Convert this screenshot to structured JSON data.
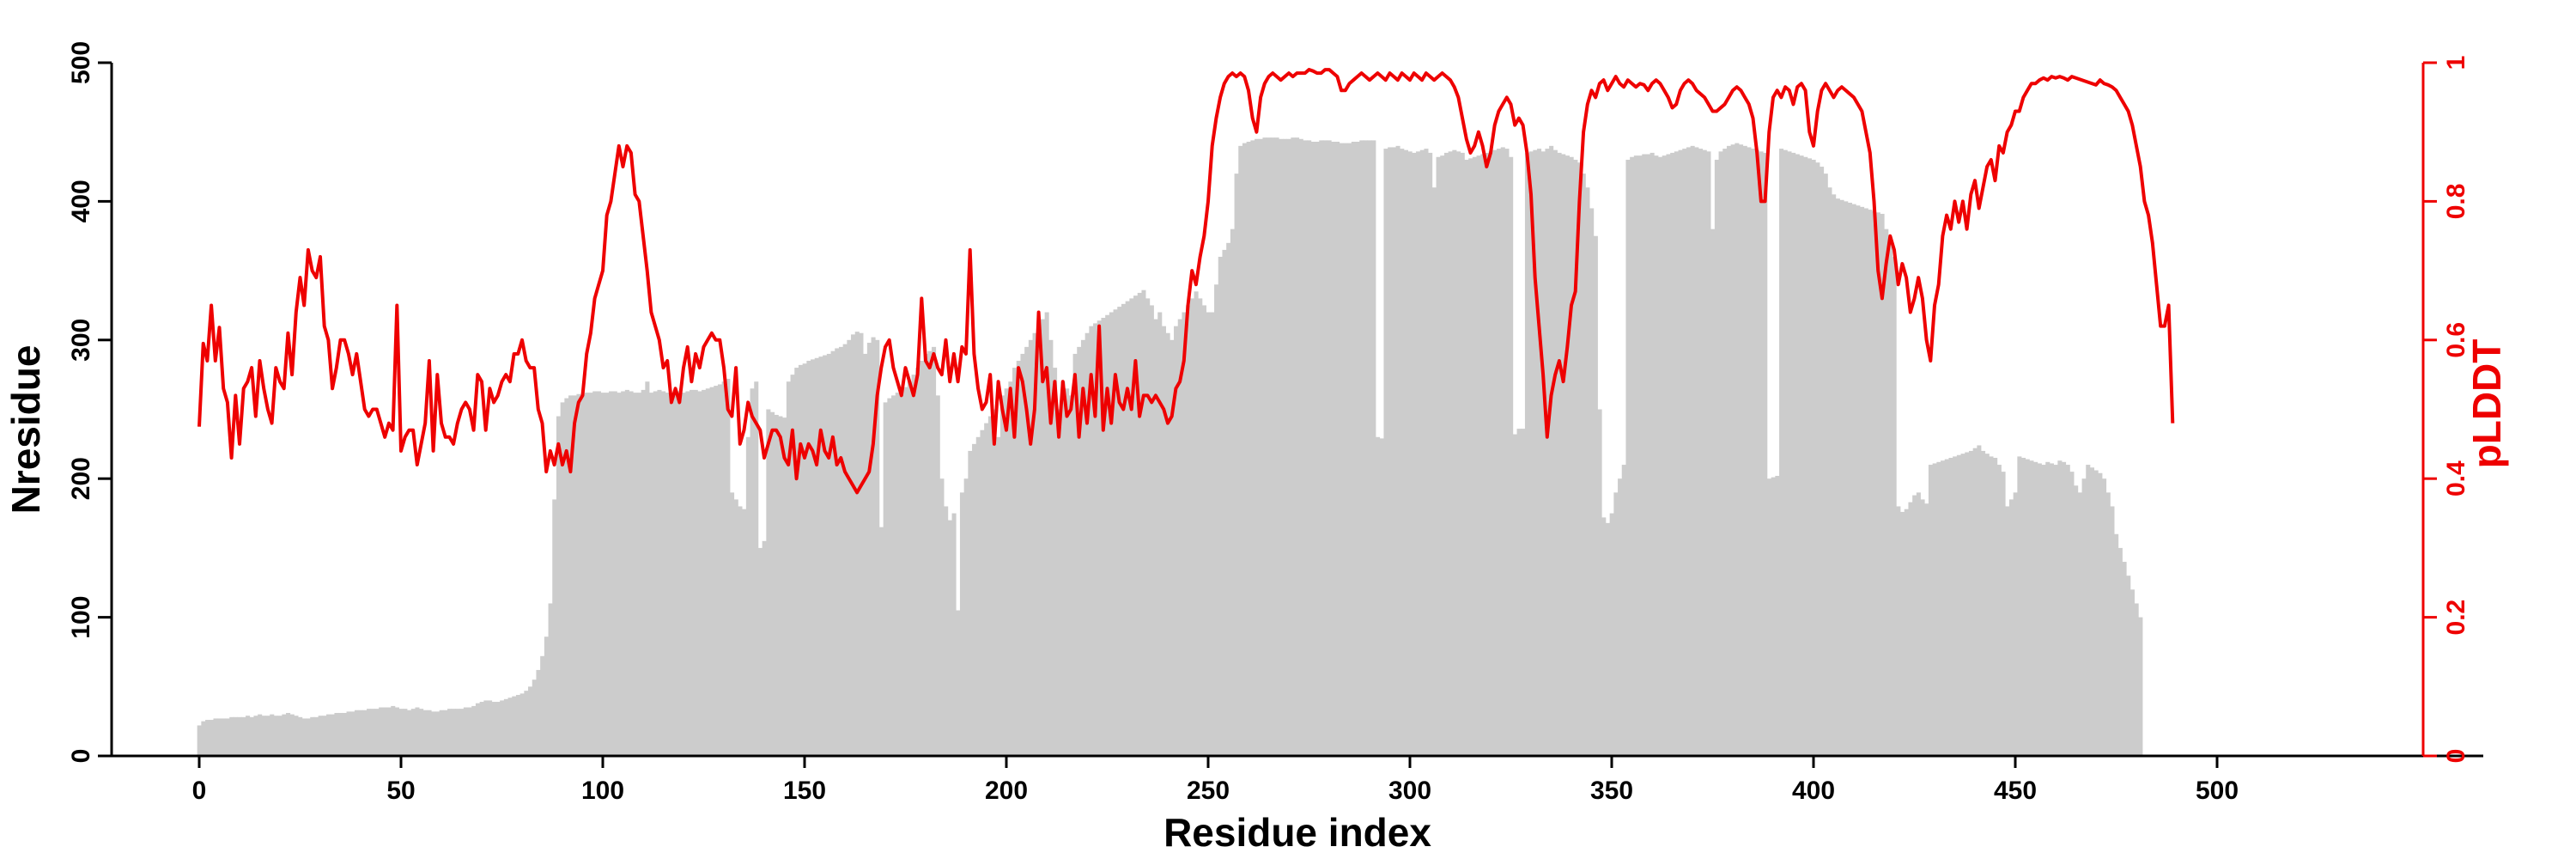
{
  "chart_data": {
    "type": "bar",
    "title": "",
    "xlabel": "Residue index",
    "ylabel": "Nresidue",
    "y2label": "pLDDT",
    "xlim": [
      -20,
      560
    ],
    "ylim": [
      0,
      500
    ],
    "y2lim": [
      0,
      1
    ],
    "x_ticks": [
      0,
      50,
      100,
      150,
      200,
      250,
      300,
      350,
      400,
      450,
      500
    ],
    "y_ticks": [
      0,
      100,
      200,
      300,
      400,
      500
    ],
    "y2_ticks": [
      0,
      0.2,
      0.4,
      0.6,
      0.8,
      1
    ],
    "y2_tick_labels": [
      "0",
      "0.2",
      "0.4",
      "0.6",
      "0.8",
      "1"
    ],
    "grid": false,
    "colors": {
      "bars": "#cccccc",
      "plddt_line": "#ee0000",
      "axes": "#000000",
      "secondary_axis": "#ee0000"
    },
    "series": [
      {
        "kind": "bar",
        "axis": "left",
        "x_start": 0,
        "values": [
          22,
          25,
          26,
          26,
          27,
          27,
          27,
          27,
          28,
          28,
          28,
          28,
          29,
          28,
          29,
          30,
          29,
          29,
          30,
          29,
          29,
          30,
          31,
          30,
          29,
          28,
          27,
          27,
          28,
          28,
          29,
          29,
          30,
          30,
          31,
          31,
          31,
          32,
          32,
          33,
          33,
          33,
          34,
          34,
          34,
          35,
          35,
          35,
          36,
          35,
          34,
          34,
          33,
          34,
          35,
          34,
          33,
          33,
          32,
          32,
          33,
          33,
          34,
          34,
          34,
          34,
          35,
          35,
          36,
          38,
          39,
          40,
          40,
          39,
          39,
          40,
          41,
          42,
          43,
          44,
          45,
          47,
          50,
          55,
          62,
          72,
          86,
          110,
          185,
          245,
          255,
          258,
          260,
          260,
          261,
          261,
          262,
          262,
          263,
          263,
          262,
          262,
          263,
          263,
          262,
          263,
          264,
          263,
          262,
          262,
          264,
          270,
          262,
          263,
          264,
          263,
          262,
          262,
          263,
          263,
          262,
          263,
          264,
          264,
          263,
          264,
          265,
          266,
          267,
          268,
          270,
          272,
          190,
          185,
          180,
          178,
          230,
          265,
          270,
          150,
          155,
          250,
          248,
          246,
          245,
          244,
          270,
          275,
          280,
          282,
          283,
          285,
          286,
          287,
          288,
          289,
          290,
          292,
          294,
          295,
          297,
          300,
          304,
          306,
          305,
          290,
          298,
          302,
          300,
          165,
          255,
          258,
          260,
          262,
          264,
          266,
          270,
          275,
          280,
          285,
          290,
          292,
          295,
          260,
          200,
          180,
          170,
          175,
          105,
          190,
          200,
          220,
          225,
          230,
          235,
          240,
          245,
          250,
          230,
          260,
          265,
          270,
          280,
          285,
          290,
          295,
          300,
          305,
          310,
          315,
          320,
          300,
          280,
          250,
          270,
          265,
          260,
          290,
          295,
          300,
          305,
          310,
          312,
          314,
          316,
          318,
          320,
          322,
          324,
          326,
          328,
          330,
          332,
          334,
          336,
          330,
          325,
          315,
          320,
          310,
          305,
          300,
          310,
          315,
          320,
          325,
          330,
          335,
          330,
          325,
          320,
          320,
          340,
          360,
          365,
          370,
          380,
          420,
          440,
          442,
          443,
          444,
          445,
          445,
          446,
          446,
          446,
          446,
          445,
          445,
          445,
          446,
          446,
          445,
          444,
          444,
          443,
          443,
          444,
          444,
          444,
          443,
          443,
          442,
          442,
          442,
          443,
          443,
          444,
          444,
          444,
          444,
          230,
          229,
          438,
          439,
          439,
          440,
          438,
          437,
          436,
          435,
          436,
          437,
          438,
          435,
          410,
          432,
          433,
          435,
          436,
          437,
          436,
          435,
          430,
          431,
          432,
          433,
          434,
          435,
          436,
          437,
          438,
          439,
          438,
          432,
          232,
          236,
          236,
          435,
          436,
          437,
          438,
          436,
          438,
          440,
          437,
          435,
          434,
          433,
          432,
          430,
          428,
          420,
          410,
          395,
          375,
          250,
          172,
          168,
          175,
          190,
          200,
          210,
          430,
          432,
          433,
          433,
          434,
          434,
          435,
          433,
          432,
          433,
          434,
          435,
          436,
          437,
          438,
          439,
          440,
          439,
          438,
          437,
          436,
          380,
          430,
          436,
          438,
          440,
          441,
          442,
          441,
          440,
          439,
          438,
          437,
          436,
          435,
          200,
          201,
          202,
          438,
          437,
          436,
          435,
          434,
          433,
          432,
          431,
          430,
          428,
          425,
          420,
          410,
          405,
          402,
          401,
          400,
          399,
          398,
          397,
          396,
          395,
          394,
          393,
          392,
          391,
          380,
          370,
          360,
          180,
          176,
          178,
          183,
          188,
          190,
          185,
          182,
          210,
          211,
          212,
          213,
          214,
          215,
          216,
          217,
          218,
          219,
          220,
          222,
          224,
          220,
          218,
          216,
          215,
          210,
          205,
          180,
          185,
          190,
          216,
          215,
          214,
          213,
          212,
          211,
          210,
          212,
          211,
          210,
          213,
          212,
          210,
          205,
          195,
          190,
          200,
          210,
          208,
          206,
          204,
          200,
          190,
          180,
          160,
          150,
          140,
          130,
          120,
          110,
          100
        ]
      },
      {
        "kind": "line",
        "axis": "right",
        "x_start": 0,
        "values": [
          0.475,
          0.595,
          0.57,
          0.65,
          0.57,
          0.618,
          0.53,
          0.51,
          0.43,
          0.52,
          0.45,
          0.53,
          0.54,
          0.56,
          0.49,
          0.57,
          0.53,
          0.5,
          0.48,
          0.56,
          0.54,
          0.53,
          0.61,
          0.55,
          0.64,
          0.69,
          0.65,
          0.73,
          0.7,
          0.69,
          0.72,
          0.62,
          0.6,
          0.53,
          0.56,
          0.6,
          0.6,
          0.58,
          0.55,
          0.58,
          0.54,
          0.5,
          0.49,
          0.5,
          0.5,
          0.48,
          0.46,
          0.48,
          0.47,
          0.65,
          0.44,
          0.46,
          0.47,
          0.47,
          0.42,
          0.45,
          0.48,
          0.57,
          0.44,
          0.55,
          0.48,
          0.46,
          0.46,
          0.45,
          0.48,
          0.5,
          0.51,
          0.5,
          0.47,
          0.55,
          0.54,
          0.47,
          0.53,
          0.51,
          0.52,
          0.54,
          0.55,
          0.54,
          0.58,
          0.58,
          0.6,
          0.57,
          0.56,
          0.56,
          0.5,
          0.48,
          0.41,
          0.44,
          0.42,
          0.45,
          0.42,
          0.44,
          0.41,
          0.48,
          0.51,
          0.52,
          0.58,
          0.61,
          0.66,
          0.68,
          0.7,
          0.78,
          0.8,
          0.84,
          0.88,
          0.85,
          0.88,
          0.87,
          0.81,
          0.8,
          0.75,
          0.7,
          0.64,
          0.62,
          0.6,
          0.56,
          0.57,
          0.51,
          0.53,
          0.51,
          0.56,
          0.59,
          0.54,
          0.58,
          0.56,
          0.59,
          0.6,
          0.61,
          0.6,
          0.6,
          0.56,
          0.5,
          0.49,
          0.56,
          0.45,
          0.47,
          0.51,
          0.49,
          0.48,
          0.47,
          0.43,
          0.45,
          0.47,
          0.47,
          0.46,
          0.43,
          0.42,
          0.47,
          0.4,
          0.45,
          0.43,
          0.45,
          0.44,
          0.42,
          0.47,
          0.44,
          0.43,
          0.46,
          0.42,
          0.43,
          0.41,
          0.4,
          0.39,
          0.38,
          0.39,
          0.4,
          0.41,
          0.45,
          0.52,
          0.56,
          0.59,
          0.6,
          0.56,
          0.54,
          0.52,
          0.56,
          0.54,
          0.52,
          0.55,
          0.66,
          0.57,
          0.56,
          0.58,
          0.56,
          0.55,
          0.6,
          0.54,
          0.58,
          0.54,
          0.59,
          0.58,
          0.73,
          0.58,
          0.53,
          0.5,
          0.51,
          0.55,
          0.45,
          0.54,
          0.5,
          0.47,
          0.53,
          0.46,
          0.56,
          0.54,
          0.5,
          0.45,
          0.5,
          0.64,
          0.54,
          0.56,
          0.48,
          0.54,
          0.46,
          0.54,
          0.49,
          0.5,
          0.55,
          0.46,
          0.53,
          0.48,
          0.55,
          0.49,
          0.62,
          0.47,
          0.53,
          0.48,
          0.55,
          0.51,
          0.5,
          0.53,
          0.5,
          0.57,
          0.49,
          0.52,
          0.52,
          0.51,
          0.52,
          0.51,
          0.5,
          0.48,
          0.49,
          0.53,
          0.54,
          0.57,
          0.65,
          0.7,
          0.68,
          0.72,
          0.75,
          0.8,
          0.88,
          0.92,
          0.95,
          0.97,
          0.98,
          0.985,
          0.98,
          0.985,
          0.98,
          0.96,
          0.92,
          0.9,
          0.95,
          0.97,
          0.98,
          0.985,
          0.98,
          0.975,
          0.98,
          0.985,
          0.98,
          0.985,
          0.985,
          0.985,
          0.99,
          0.988,
          0.985,
          0.985,
          0.99,
          0.99,
          0.985,
          0.98,
          0.96,
          0.96,
          0.97,
          0.975,
          0.98,
          0.985,
          0.98,
          0.975,
          0.98,
          0.985,
          0.98,
          0.975,
          0.985,
          0.98,
          0.975,
          0.985,
          0.98,
          0.975,
          0.985,
          0.98,
          0.975,
          0.985,
          0.98,
          0.975,
          0.98,
          0.985,
          0.98,
          0.975,
          0.965,
          0.95,
          0.92,
          0.89,
          0.87,
          0.88,
          0.9,
          0.88,
          0.85,
          0.87,
          0.91,
          0.93,
          0.94,
          0.95,
          0.94,
          0.91,
          0.92,
          0.91,
          0.87,
          0.81,
          0.69,
          0.62,
          0.55,
          0.46,
          0.52,
          0.55,
          0.57,
          0.54,
          0.59,
          0.65,
          0.67,
          0.8,
          0.9,
          0.94,
          0.96,
          0.95,
          0.97,
          0.975,
          0.96,
          0.97,
          0.98,
          0.97,
          0.965,
          0.975,
          0.97,
          0.965,
          0.97,
          0.968,
          0.96,
          0.97,
          0.975,
          0.97,
          0.96,
          0.95,
          0.935,
          0.94,
          0.96,
          0.97,
          0.975,
          0.97,
          0.96,
          0.955,
          0.95,
          0.94,
          0.93,
          0.93,
          0.935,
          0.94,
          0.95,
          0.96,
          0.965,
          0.96,
          0.95,
          0.94,
          0.92,
          0.87,
          0.8,
          0.8,
          0.9,
          0.95,
          0.96,
          0.95,
          0.965,
          0.96,
          0.94,
          0.965,
          0.97,
          0.96,
          0.9,
          0.88,
          0.93,
          0.96,
          0.97,
          0.96,
          0.95,
          0.96,
          0.965,
          0.96,
          0.955,
          0.95,
          0.94,
          0.93,
          0.9,
          0.87,
          0.8,
          0.7,
          0.66,
          0.71,
          0.75,
          0.73,
          0.68,
          0.71,
          0.69,
          0.64,
          0.66,
          0.69,
          0.66,
          0.6,
          0.57,
          0.65,
          0.68,
          0.75,
          0.78,
          0.76,
          0.8,
          0.77,
          0.8,
          0.76,
          0.81,
          0.83,
          0.79,
          0.82,
          0.85,
          0.86,
          0.83,
          0.88,
          0.87,
          0.9,
          0.91,
          0.93,
          0.93,
          0.95,
          0.96,
          0.97,
          0.97,
          0.975,
          0.978,
          0.975,
          0.98,
          0.978,
          0.98,
          0.978,
          0.975,
          0.98,
          0.978,
          0.976,
          0.974,
          0.972,
          0.97,
          0.968,
          0.975,
          0.97,
          0.968,
          0.965,
          0.96,
          0.95,
          0.94,
          0.93,
          0.91,
          0.88,
          0.85,
          0.8,
          0.78,
          0.74,
          0.68,
          0.62,
          0.62,
          0.65,
          0.48
        ]
      }
    ]
  }
}
